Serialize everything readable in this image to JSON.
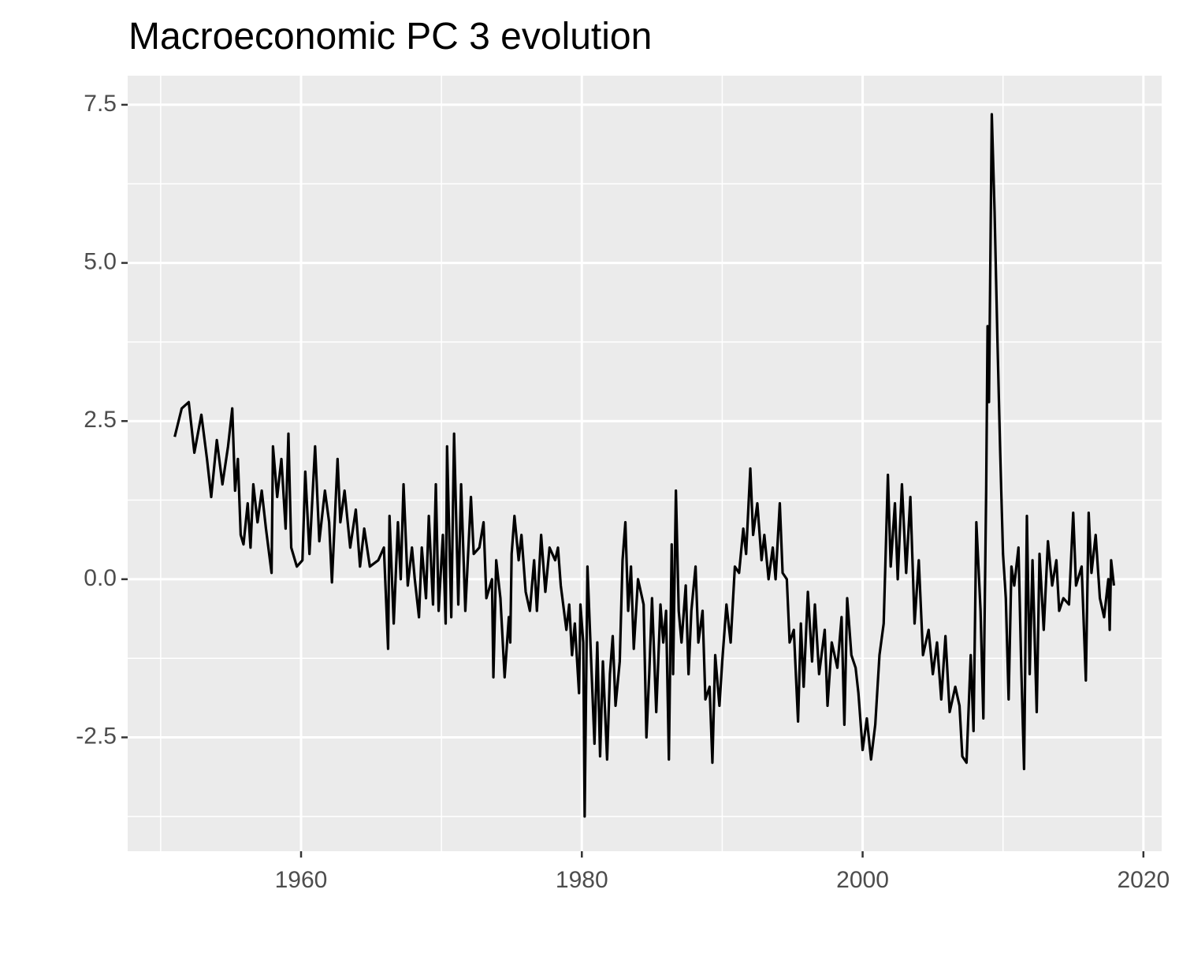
{
  "chart_data": {
    "type": "line",
    "title": "Macroeconomic PC 3 evolution",
    "color": "#000000",
    "grid": true,
    "xlim": [
      1947.65,
      2021.3
    ],
    "xticks": [
      1960,
      1980,
      2000,
      2020
    ],
    "ylim": [
      -4.3,
      7.96
    ],
    "yticks": [
      -2.5,
      {
        "value": 0,
        "label": "0.0"
      },
      2.5,
      {
        "value": 5,
        "label": "5.0"
      },
      7.5
    ],
    "x": [
      1951.0,
      1951.5,
      1952.0,
      1952.4,
      1952.9,
      1953.3,
      1953.6,
      1954.0,
      1954.4,
      1954.8,
      1955.1,
      1955.3,
      1955.5,
      1955.7,
      1955.9,
      1956.2,
      1956.4,
      1956.6,
      1956.9,
      1957.2,
      1957.5,
      1957.9,
      1958.0,
      1958.3,
      1958.6,
      1958.9,
      1959.1,
      1959.3,
      1959.7,
      1960.1,
      1960.3,
      1960.6,
      1961.0,
      1961.3,
      1961.7,
      1962.0,
      1962.2,
      1962.6,
      1962.8,
      1963.1,
      1963.5,
      1963.9,
      1964.2,
      1964.5,
      1964.9,
      1965.5,
      1965.9,
      1966.2,
      1966.3,
      1966.6,
      1966.9,
      1967.1,
      1967.3,
      1967.6,
      1967.9,
      1968.1,
      1968.4,
      1968.6,
      1968.9,
      1969.1,
      1969.4,
      1969.6,
      1969.8,
      1970.1,
      1970.3,
      1970.4,
      1970.7,
      1970.9,
      1971.2,
      1971.4,
      1971.7,
      1972.1,
      1972.3,
      1972.7,
      1973.0,
      1973.2,
      1973.6,
      1973.7,
      1973.9,
      1974.2,
      1974.5,
      1974.8,
      1974.9,
      1975.0,
      1975.2,
      1975.5,
      1975.7,
      1976.0,
      1976.3,
      1976.6,
      1976.8,
      1977.1,
      1977.4,
      1977.7,
      1978.1,
      1978.3,
      1978.5,
      1978.9,
      1979.1,
      1979.3,
      1979.5,
      1979.8,
      1979.9,
      1980.1,
      1980.2,
      1980.4,
      1980.7,
      1980.9,
      1981.1,
      1981.3,
      1981.5,
      1981.8,
      1982.0,
      1982.2,
      1982.4,
      1982.7,
      1982.9,
      1983.1,
      1983.3,
      1983.5,
      1983.7,
      1984.0,
      1984.4,
      1984.6,
      1984.8,
      1985.0,
      1985.3,
      1985.6,
      1985.8,
      1986.0,
      1986.2,
      1986.4,
      1986.5,
      1986.7,
      1986.9,
      1987.1,
      1987.4,
      1987.6,
      1987.8,
      1988.1,
      1988.3,
      1988.6,
      1988.8,
      1989.1,
      1989.3,
      1989.5,
      1989.8,
      1990.0,
      1990.3,
      1990.6,
      1990.9,
      1991.2,
      1991.5,
      1991.7,
      1992.0,
      1992.2,
      1992.5,
      1992.8,
      1993.0,
      1993.3,
      1993.6,
      1993.8,
      1994.1,
      1994.3,
      1994.6,
      1994.8,
      1995.1,
      1995.4,
      1995.6,
      1995.8,
      1996.1,
      1996.4,
      1996.6,
      1996.9,
      1997.3,
      1997.5,
      1997.8,
      1998.2,
      1998.5,
      1998.7,
      1998.9,
      1999.2,
      1999.5,
      1999.7,
      2000.0,
      2000.3,
      2000.6,
      2000.9,
      2001.2,
      2001.5,
      2001.8,
      2002.0,
      2002.3,
      2002.5,
      2002.8,
      2003.1,
      2003.4,
      2003.7,
      2004.0,
      2004.3,
      2004.7,
      2005.0,
      2005.3,
      2005.6,
      2005.9,
      2006.2,
      2006.6,
      2006.9,
      2007.1,
      2007.4,
      2007.7,
      2007.9,
      2008.1,
      2008.4,
      2008.6,
      2008.8,
      2008.9,
      2009.0,
      2009.2,
      2009.4,
      2009.6,
      2009.8,
      2010.0,
      2010.2,
      2010.4,
      2010.6,
      2010.8,
      2011.1,
      2011.3,
      2011.5,
      2011.7,
      2011.9,
      2012.1,
      2012.4,
      2012.6,
      2012.9,
      2013.2,
      2013.5,
      2013.8,
      2014.0,
      2014.3,
      2014.7,
      2015.0,
      2015.2,
      2015.6,
      2015.9,
      2016.1,
      2016.3,
      2016.6,
      2016.9,
      2017.2,
      2017.5,
      2017.6,
      2017.7,
      2017.9
    ],
    "values": [
      2.25,
      2.7,
      2.8,
      2.0,
      2.6,
      1.9,
      1.3,
      2.2,
      1.5,
      2.1,
      2.7,
      1.4,
      1.9,
      0.7,
      0.55,
      1.2,
      0.5,
      1.5,
      0.9,
      1.4,
      0.8,
      0.1,
      2.1,
      1.3,
      1.9,
      0.8,
      2.3,
      0.5,
      0.2,
      0.3,
      1.7,
      0.4,
      2.1,
      0.6,
      1.4,
      0.9,
      -0.05,
      1.9,
      0.9,
      1.4,
      0.5,
      1.1,
      0.2,
      0.8,
      0.2,
      0.3,
      0.5,
      -1.1,
      1.0,
      -0.7,
      0.9,
      0.0,
      1.5,
      -0.1,
      0.5,
      0.0,
      -0.6,
      0.5,
      -0.3,
      1.0,
      -0.4,
      1.5,
      -0.5,
      0.7,
      -0.7,
      2.1,
      -0.6,
      2.3,
      -0.4,
      1.5,
      -0.5,
      1.3,
      0.4,
      0.5,
      0.9,
      -0.3,
      0.0,
      -1.55,
      0.3,
      -0.3,
      -1.55,
      -0.6,
      -1.0,
      0.4,
      1.0,
      0.3,
      0.7,
      -0.2,
      -0.5,
      0.3,
      -0.5,
      0.7,
      -0.2,
      0.5,
      0.3,
      0.5,
      -0.1,
      -0.8,
      -0.4,
      -1.2,
      -0.7,
      -1.8,
      -0.4,
      -1.0,
      -3.75,
      0.2,
      -1.5,
      -2.6,
      -1.0,
      -2.8,
      -1.3,
      -2.85,
      -1.5,
      -0.9,
      -2.0,
      -1.3,
      0.3,
      0.9,
      -0.5,
      0.2,
      -1.1,
      0.0,
      -0.4,
      -2.5,
      -1.5,
      -0.3,
      -2.1,
      -0.4,
      -1.0,
      -0.5,
      -2.85,
      0.55,
      -1.5,
      1.4,
      -0.5,
      -1.0,
      -0.1,
      -1.5,
      -0.5,
      0.2,
      -1.0,
      -0.5,
      -1.9,
      -1.7,
      -2.9,
      -1.2,
      -2.0,
      -1.3,
      -0.4,
      -1.0,
      0.2,
      0.1,
      0.8,
      0.4,
      1.75,
      0.7,
      1.2,
      0.3,
      0.7,
      0.0,
      0.5,
      0.0,
      1.2,
      0.1,
      0.0,
      -1.0,
      -0.8,
      -2.25,
      -0.7,
      -1.7,
      -0.2,
      -1.3,
      -0.4,
      -1.5,
      -0.8,
      -2.0,
      -1.0,
      -1.4,
      -0.6,
      -2.3,
      -0.3,
      -1.2,
      -1.4,
      -1.8,
      -2.7,
      -2.2,
      -2.85,
      -2.3,
      -1.2,
      -0.7,
      1.65,
      0.2,
      1.2,
      0.0,
      1.5,
      0.1,
      1.3,
      -0.7,
      0.3,
      -1.2,
      -0.8,
      -1.5,
      -1.0,
      -1.9,
      -0.9,
      -2.1,
      -1.7,
      -2.0,
      -2.8,
      -2.9,
      -1.2,
      -2.4,
      0.9,
      -0.5,
      -2.2,
      1.4,
      4.0,
      2.8,
      7.35,
      5.8,
      3.8,
      2.0,
      0.4,
      -0.3,
      -1.9,
      0.2,
      -0.1,
      0.5,
      -1.4,
      -3.0,
      1.0,
      -1.5,
      0.3,
      -2.1,
      0.4,
      -0.8,
      0.6,
      -0.1,
      0.3,
      -0.5,
      -0.3,
      -0.4,
      1.05,
      -0.1,
      0.2,
      -1.6,
      1.05,
      0.1,
      0.7,
      -0.3,
      -0.6,
      0.0,
      -0.8,
      0.3,
      -0.1
    ]
  }
}
